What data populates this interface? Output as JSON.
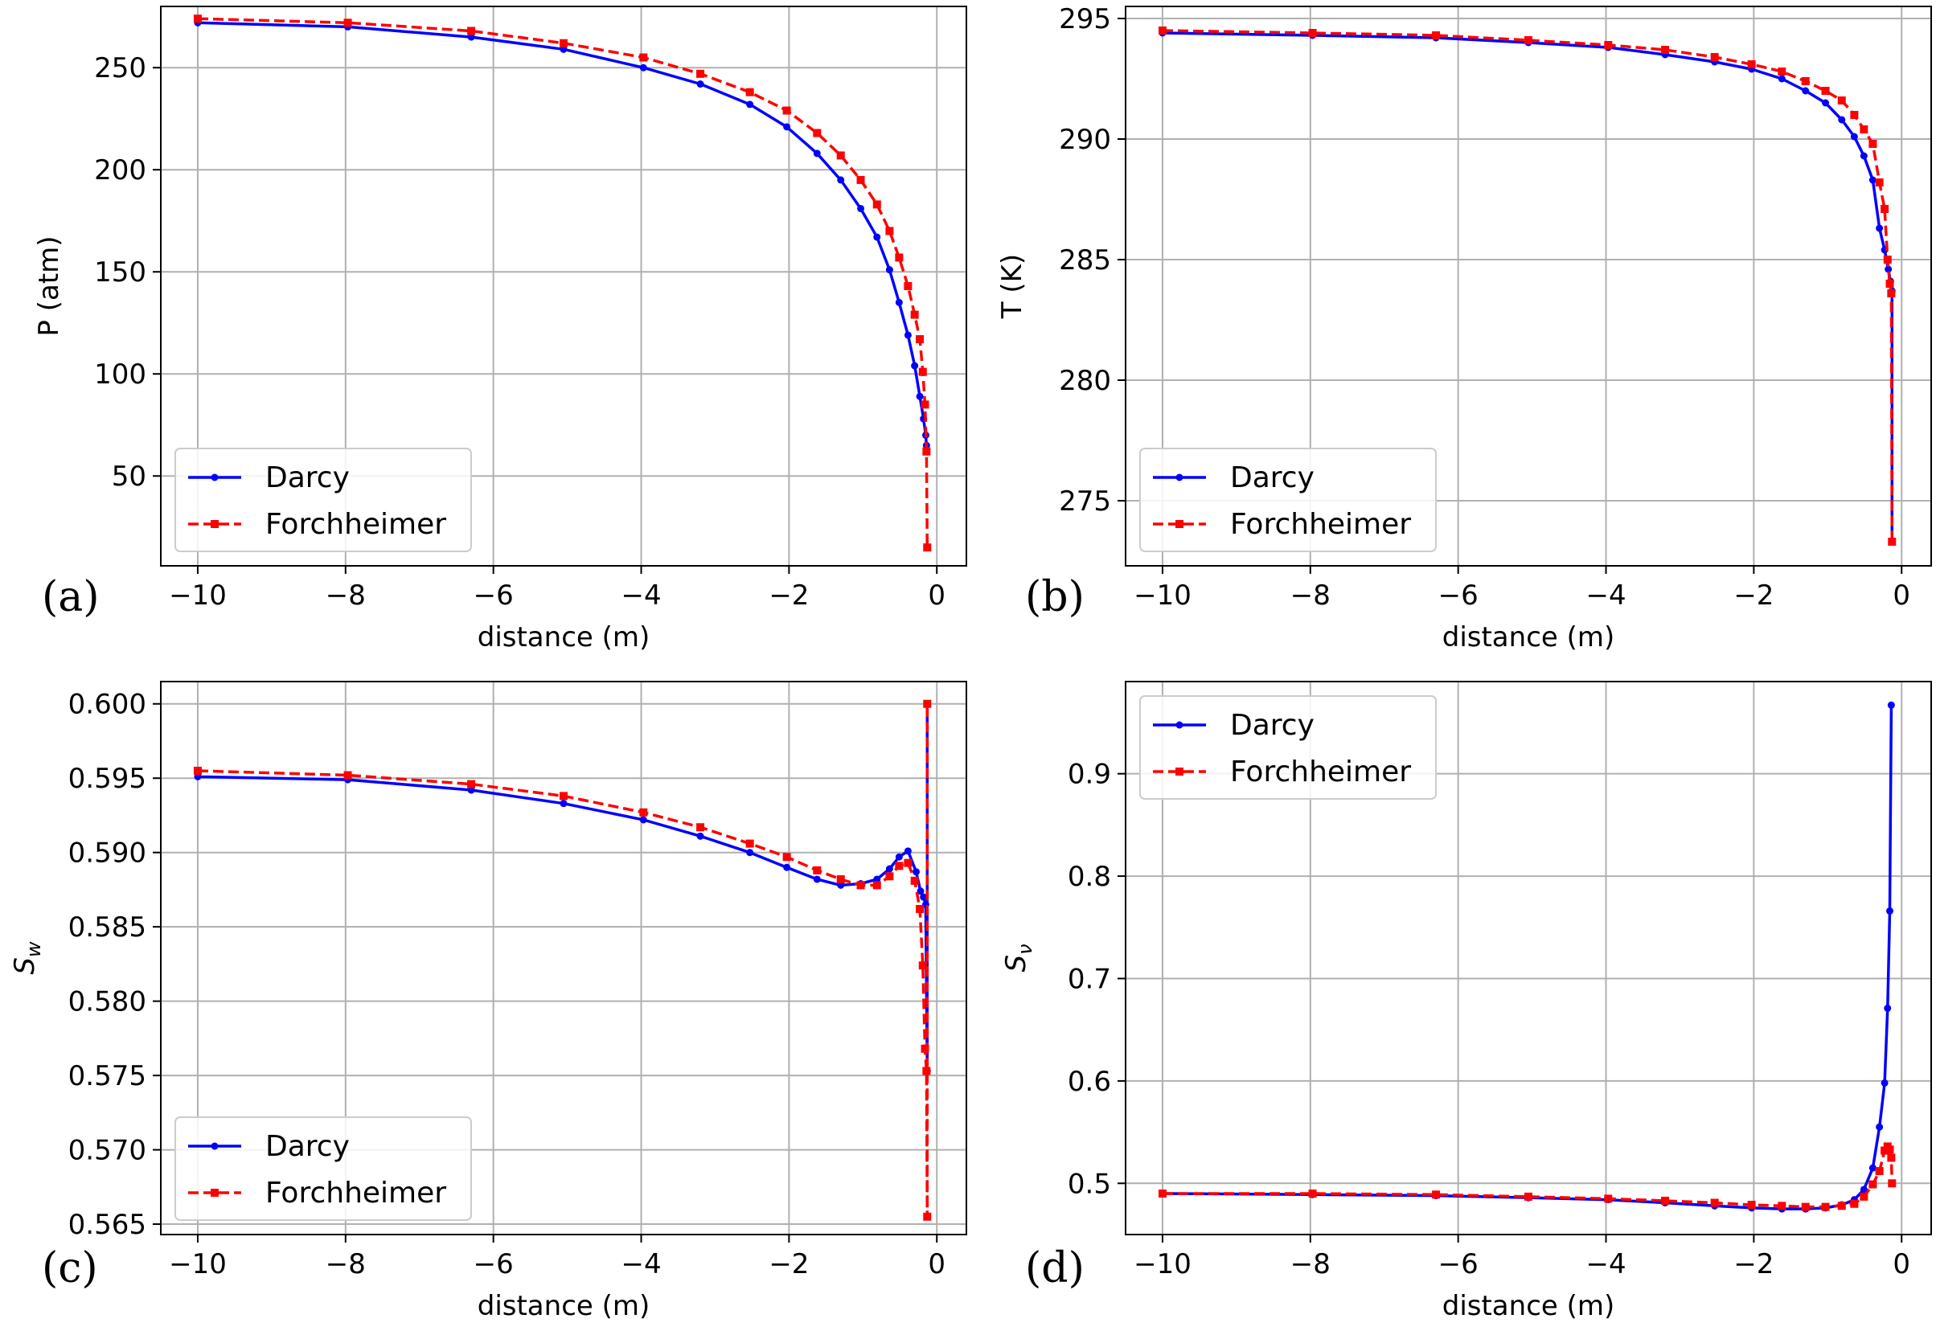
{
  "figure": {
    "series_styles": [
      {
        "name": "Darcy",
        "color": "#0000ff",
        "dash": "solid",
        "marker": "circle"
      },
      {
        "name": "Forchheimer",
        "color": "#ff0000",
        "dash": "dashed",
        "marker": "square"
      }
    ]
  },
  "chart_data": [
    {
      "type": "line",
      "panel_label": "(a)",
      "xlabel": "distance (m)",
      "ylabel": "P (atm)",
      "ylabel_sub": "",
      "xlim": [
        -10.5,
        0.4
      ],
      "ylim": [
        6,
        280
      ],
      "xticks": [
        -10,
        -8,
        -6,
        -4,
        -2,
        0
      ],
      "xtick_labels": [
        "−10",
        "−8",
        "−6",
        "−4",
        "−2",
        "0"
      ],
      "yticks": [
        50,
        100,
        150,
        200,
        250
      ],
      "ytick_labels": [
        "50",
        "100",
        "150",
        "200",
        "250"
      ],
      "grid": true,
      "legend": {
        "position": "lower-left",
        "entries": [
          "Darcy",
          "Forchheimer"
        ]
      },
      "series": [
        {
          "name": "Darcy",
          "x": [
            -10,
            -7.97,
            -6.3,
            -5.05,
            -3.97,
            -3.2,
            -2.53,
            -2.03,
            -1.62,
            -1.3,
            -1.03,
            -0.81,
            -0.64,
            -0.51,
            -0.39,
            -0.3,
            -0.23,
            -0.18,
            -0.15,
            -0.14
          ],
          "y": [
            272,
            270,
            265,
            259,
            250,
            242,
            232,
            221,
            208,
            195,
            181,
            167,
            151,
            135,
            119,
            104,
            89,
            78,
            70,
            65
          ]
        },
        {
          "name": "Forchheimer",
          "x": [
            -10,
            -7.97,
            -6.3,
            -5.05,
            -3.97,
            -3.2,
            -2.53,
            -2.03,
            -1.62,
            -1.3,
            -1.03,
            -0.81,
            -0.64,
            -0.51,
            -0.39,
            -0.3,
            -0.23,
            -0.19,
            -0.16,
            -0.14,
            -0.13
          ],
          "y": [
            274,
            272,
            268,
            262,
            255,
            247,
            238,
            229,
            218,
            207,
            195,
            183,
            170,
            157,
            143,
            129,
            117,
            101,
            85,
            62,
            15
          ]
        }
      ]
    },
    {
      "type": "line",
      "panel_label": "(b)",
      "xlabel": "distance (m)",
      "ylabel": "T (K)",
      "ylabel_sub": "",
      "xlim": [
        -10.5,
        0.4
      ],
      "ylim": [
        272.3,
        295.5
      ],
      "xticks": [
        -10,
        -8,
        -6,
        -4,
        -2,
        0
      ],
      "xtick_labels": [
        "−10",
        "−8",
        "−6",
        "−4",
        "−2",
        "0"
      ],
      "yticks": [
        275,
        280,
        285,
        290,
        295
      ],
      "ytick_labels": [
        "275",
        "280",
        "285",
        "290",
        "295"
      ],
      "grid": true,
      "legend": {
        "position": "lower-left",
        "entries": [
          "Darcy",
          "Forchheimer"
        ]
      },
      "series": [
        {
          "name": "Darcy",
          "x": [
            -10,
            -7.97,
            -6.3,
            -5.05,
            -3.97,
            -3.2,
            -2.53,
            -2.03,
            -1.62,
            -1.3,
            -1.03,
            -0.81,
            -0.64,
            -0.51,
            -0.39,
            -0.3,
            -0.23,
            -0.18,
            -0.15,
            -0.13,
            -0.13
          ],
          "y": [
            294.4,
            294.3,
            294.2,
            294.0,
            293.8,
            293.5,
            293.2,
            292.9,
            292.5,
            292.0,
            291.5,
            290.8,
            290.1,
            289.3,
            288.3,
            286.3,
            285.4,
            284.6,
            284.1,
            283.7,
            273.3
          ]
        },
        {
          "name": "Forchheimer",
          "x": [
            -10,
            -7.97,
            -6.3,
            -5.05,
            -3.97,
            -3.2,
            -2.53,
            -2.03,
            -1.62,
            -1.3,
            -1.03,
            -0.81,
            -0.64,
            -0.51,
            -0.39,
            -0.3,
            -0.23,
            -0.19,
            -0.16,
            -0.14,
            -0.13
          ],
          "y": [
            294.5,
            294.4,
            294.3,
            294.1,
            293.9,
            293.7,
            293.4,
            293.1,
            292.8,
            292.4,
            292.0,
            291.6,
            291.0,
            290.4,
            289.8,
            288.2,
            287.1,
            285.0,
            284.0,
            283.6,
            273.3
          ]
        }
      ]
    },
    {
      "type": "line",
      "panel_label": "(c)",
      "xlabel": "distance (m)",
      "ylabel": "S",
      "ylabel_sub": "w",
      "xlim": [
        -10.5,
        0.4
      ],
      "ylim": [
        0.5643,
        0.6015
      ],
      "xticks": [
        -10,
        -8,
        -6,
        -4,
        -2,
        0
      ],
      "xtick_labels": [
        "−10",
        "−8",
        "−6",
        "−4",
        "−2",
        "0"
      ],
      "yticks": [
        0.565,
        0.57,
        0.575,
        0.58,
        0.585,
        0.59,
        0.595,
        0.6
      ],
      "ytick_labels": [
        "0.565",
        "0.570",
        "0.575",
        "0.580",
        "0.585",
        "0.590",
        "0.595",
        "0.600"
      ],
      "grid": true,
      "legend": {
        "position": "lower-left",
        "entries": [
          "Darcy",
          "Forchheimer"
        ]
      },
      "series": [
        {
          "name": "Darcy",
          "x": [
            -10,
            -7.97,
            -6.3,
            -5.05,
            -3.97,
            -3.2,
            -2.53,
            -2.03,
            -1.62,
            -1.3,
            -1.03,
            -0.81,
            -0.64,
            -0.51,
            -0.39,
            -0.28,
            -0.22,
            -0.18,
            -0.15,
            -0.13,
            -0.13
          ],
          "y": [
            0.5951,
            0.5949,
            0.5942,
            0.5933,
            0.5922,
            0.5911,
            0.59,
            0.589,
            0.5882,
            0.5878,
            0.5879,
            0.5882,
            0.5889,
            0.5897,
            0.5901,
            0.5887,
            0.5874,
            0.587,
            0.5865,
            0.5753,
            0.6
          ]
        },
        {
          "name": "Forchheimer",
          "x": [
            -10,
            -7.97,
            -6.3,
            -5.05,
            -3.97,
            -3.2,
            -2.53,
            -2.03,
            -1.62,
            -1.3,
            -1.03,
            -0.81,
            -0.64,
            -0.51,
            -0.39,
            -0.3,
            -0.23,
            -0.19,
            -0.16,
            -0.14,
            -0.13,
            -0.13
          ],
          "y": [
            0.5955,
            0.5952,
            0.5946,
            0.5938,
            0.5927,
            0.5917,
            0.5906,
            0.5897,
            0.5888,
            0.5882,
            0.5878,
            0.5878,
            0.5884,
            0.5891,
            0.5893,
            0.5881,
            0.5862,
            0.5824,
            0.5768,
            0.5753,
            0.5655,
            0.6
          ]
        }
      ]
    },
    {
      "type": "line",
      "panel_label": "(d)",
      "xlabel": "distance (m)",
      "ylabel": "S",
      "ylabel_sub": "ν",
      "xlim": [
        -10.5,
        0.4
      ],
      "ylim": [
        0.45,
        0.99
      ],
      "xticks": [
        -10,
        -8,
        -6,
        -4,
        -2,
        0
      ],
      "xtick_labels": [
        "−10",
        "−8",
        "−6",
        "−4",
        "−2",
        "0"
      ],
      "yticks": [
        0.5,
        0.6,
        0.7,
        0.8,
        0.9
      ],
      "ytick_labels": [
        "0.5",
        "0.6",
        "0.7",
        "0.8",
        "0.9"
      ],
      "grid": true,
      "legend": {
        "position": "upper-left",
        "entries": [
          "Darcy",
          "Forchheimer"
        ]
      },
      "series": [
        {
          "name": "Darcy",
          "x": [
            -10,
            -7.97,
            -6.3,
            -5.05,
            -3.97,
            -3.2,
            -2.53,
            -2.03,
            -1.62,
            -1.3,
            -1.03,
            -0.81,
            -0.64,
            -0.51,
            -0.39,
            -0.3,
            -0.23,
            -0.19,
            -0.16,
            -0.14
          ],
          "y": [
            0.49,
            0.489,
            0.488,
            0.486,
            0.484,
            0.481,
            0.478,
            0.476,
            0.475,
            0.475,
            0.476,
            0.479,
            0.484,
            0.494,
            0.515,
            0.555,
            0.598,
            0.671,
            0.766,
            0.967
          ]
        },
        {
          "name": "Forchheimer",
          "x": [
            -10,
            -7.97,
            -6.3,
            -5.05,
            -3.97,
            -3.2,
            -2.53,
            -2.03,
            -1.62,
            -1.3,
            -1.03,
            -0.81,
            -0.64,
            -0.51,
            -0.39,
            -0.3,
            -0.23,
            -0.19,
            -0.16,
            -0.14,
            -0.13
          ],
          "y": [
            0.49,
            0.49,
            0.489,
            0.487,
            0.485,
            0.483,
            0.481,
            0.479,
            0.478,
            0.477,
            0.477,
            0.478,
            0.48,
            0.487,
            0.499,
            0.512,
            0.532,
            0.536,
            0.533,
            0.525,
            0.5
          ]
        }
      ]
    }
  ]
}
